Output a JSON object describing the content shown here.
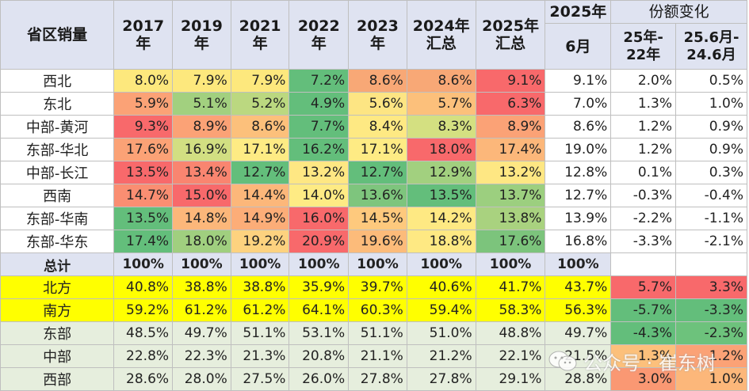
{
  "header": {
    "row_label": "省区销量",
    "years": [
      {
        "top": "2017",
        "bottom": "年"
      },
      {
        "top": "2019",
        "bottom": "年"
      },
      {
        "top": "2021",
        "bottom": "年"
      },
      {
        "top": "2022",
        "bottom": "年"
      },
      {
        "top": "2023",
        "bottom": "年"
      },
      {
        "top": "2024年",
        "bottom": "汇总"
      },
      {
        "top": "2025年",
        "bottom": "汇总"
      },
      {
        "top": "2025年",
        "bottom": "6月"
      }
    ],
    "change_group": "份额变化",
    "change_cols": [
      {
        "top": "25年-",
        "bottom": "22年"
      },
      {
        "top": "25.6月-",
        "bottom": "24.6月"
      }
    ]
  },
  "rows": [
    {
      "label": "西北",
      "values": [
        "8.0%",
        "7.9%",
        "7.9%",
        "7.2%",
        "8.6%",
        "8.6%",
        "9.1%",
        "9.1%"
      ],
      "changes": [
        "2.0%",
        "0.5%"
      ],
      "colors": [
        "#fde87d",
        "#fde87d",
        "#fde87d",
        "#63be7b",
        "#f8a876",
        "#f8a876",
        "#f8696b",
        "#ffffff"
      ]
    },
    {
      "label": "东北",
      "values": [
        "5.9%",
        "5.1%",
        "5.2%",
        "4.9%",
        "5.6%",
        "5.7%",
        "6.3%",
        "7.0%"
      ],
      "changes": [
        "1.3%",
        "1.0%"
      ],
      "colors": [
        "#fba276",
        "#a2d07f",
        "#bbd880",
        "#63be7b",
        "#fde583",
        "#fcc07b",
        "#f8696b",
        "#ffffff"
      ]
    },
    {
      "label": "中部-黄河",
      "values": [
        "9.3%",
        "8.9%",
        "8.6%",
        "7.7%",
        "8.4%",
        "8.3%",
        "8.9%",
        "8.6%"
      ],
      "changes": [
        "1.2%",
        "0.9%"
      ],
      "colors": [
        "#f8696b",
        "#fba276",
        "#fcc07b",
        "#63be7b",
        "#fee983",
        "#d4e081",
        "#fba276",
        "#ffffff"
      ]
    },
    {
      "label": "东部-华北",
      "values": [
        "17.6%",
        "16.9%",
        "17.1%",
        "16.2%",
        "17.1%",
        "18.0%",
        "17.4%",
        "19.0%"
      ],
      "changes": [
        "1.2%",
        "0.9%"
      ],
      "colors": [
        "#fba276",
        "#d2df82",
        "#feeb84",
        "#63be7b",
        "#feeb84",
        "#f8696b",
        "#fcb77a",
        "#ffffff"
      ]
    },
    {
      "label": "中部-长江",
      "values": [
        "13.5%",
        "13.4%",
        "12.7%",
        "13.2%",
        "12.7%",
        "12.9%",
        "13.2%",
        "12.8%"
      ],
      "changes": [
        "0.1%",
        "0.3%"
      ],
      "colors": [
        "#f8696b",
        "#f98570",
        "#63be7b",
        "#fee783",
        "#63be7b",
        "#a2d07f",
        "#fee783",
        "#ffffff"
      ]
    },
    {
      "label": "西南",
      "values": [
        "14.7%",
        "15.0%",
        "14.4%",
        "14.0%",
        "13.6%",
        "13.5%",
        "13.7%",
        "12.7%"
      ],
      "changes": [
        "-0.3%",
        "-0.4%"
      ],
      "colors": [
        "#fa8e72",
        "#f8696b",
        "#fcb77a",
        "#feeb84",
        "#7ec57d",
        "#63be7b",
        "#9ccf7f",
        "#ffffff"
      ]
    },
    {
      "label": "东部-华南",
      "values": [
        "13.5%",
        "14.8%",
        "14.9%",
        "16.0%",
        "14.5%",
        "14.2%",
        "13.8%",
        "13.9%"
      ],
      "changes": [
        "-2.2%",
        "-1.1%"
      ],
      "colors": [
        "#63be7b",
        "#fcb77a",
        "#fcad78",
        "#f8696b",
        "#fec97d",
        "#fee983",
        "#a9d27f",
        "#ffffff"
      ]
    },
    {
      "label": "东部-华东",
      "values": [
        "17.4%",
        "18.0%",
        "19.2%",
        "20.9%",
        "19.6%",
        "18.8%",
        "17.6%",
        "16.8%"
      ],
      "changes": [
        "-3.3%",
        "-2.1%"
      ],
      "colors": [
        "#63be7b",
        "#a0cf7f",
        "#fdd27f",
        "#f8696b",
        "#fcbb7a",
        "#fee983",
        "#7cc47c",
        "#ffffff"
      ]
    }
  ],
  "total": {
    "label": "总计",
    "values": [
      "100%",
      "100%",
      "100%",
      "100%",
      "100%",
      "100%",
      "100%",
      "100%"
    ]
  },
  "groups": [
    {
      "key": "north",
      "label": "北方",
      "values": [
        "40.8%",
        "38.8%",
        "38.8%",
        "35.9%",
        "39.7%",
        "40.6%",
        "41.7%",
        "43.7%"
      ],
      "changes": [
        "5.7%",
        "3.3%"
      ],
      "change_colors": [
        "#f8696b",
        "#f8696b"
      ]
    },
    {
      "key": "south",
      "label": "南方",
      "values": [
        "59.2%",
        "61.2%",
        "61.2%",
        "64.1%",
        "60.3%",
        "59.4%",
        "58.3%",
        "56.3%"
      ],
      "changes": [
        "-5.7%",
        "-3.3%"
      ],
      "change_colors": [
        "#63be7b",
        "#63be7b"
      ]
    },
    {
      "key": "region",
      "label": "东部",
      "values": [
        "48.5%",
        "49.7%",
        "51.1%",
        "53.1%",
        "51.1%",
        "51.0%",
        "48.8%",
        "49.7%"
      ],
      "changes": [
        "-4.3%",
        "-2.3%"
      ],
      "change_colors": [
        "#63be7b",
        "#6dc27c"
      ]
    },
    {
      "key": "region",
      "label": "中部",
      "values": [
        "22.8%",
        "22.3%",
        "21.3%",
        "20.8%",
        "21.1%",
        "21.2%",
        "22.1%",
        "21.5%"
      ],
      "changes": [
        "1.3%",
        "1.2%"
      ],
      "change_colors": [
        "#fcc07b",
        "#fba276"
      ]
    },
    {
      "key": "region",
      "label": "西部",
      "values": [
        "28.6%",
        "28.0%",
        "27.5%",
        "26.0%",
        "27.8%",
        "27.8%",
        "29.1%",
        "28.8%"
      ],
      "changes": [
        "3.0%",
        "1.0%"
      ],
      "change_colors": [
        "#fa9873",
        "#fcb77a"
      ]
    }
  ],
  "watermark": {
    "text": "公众号 · 崔东树"
  }
}
